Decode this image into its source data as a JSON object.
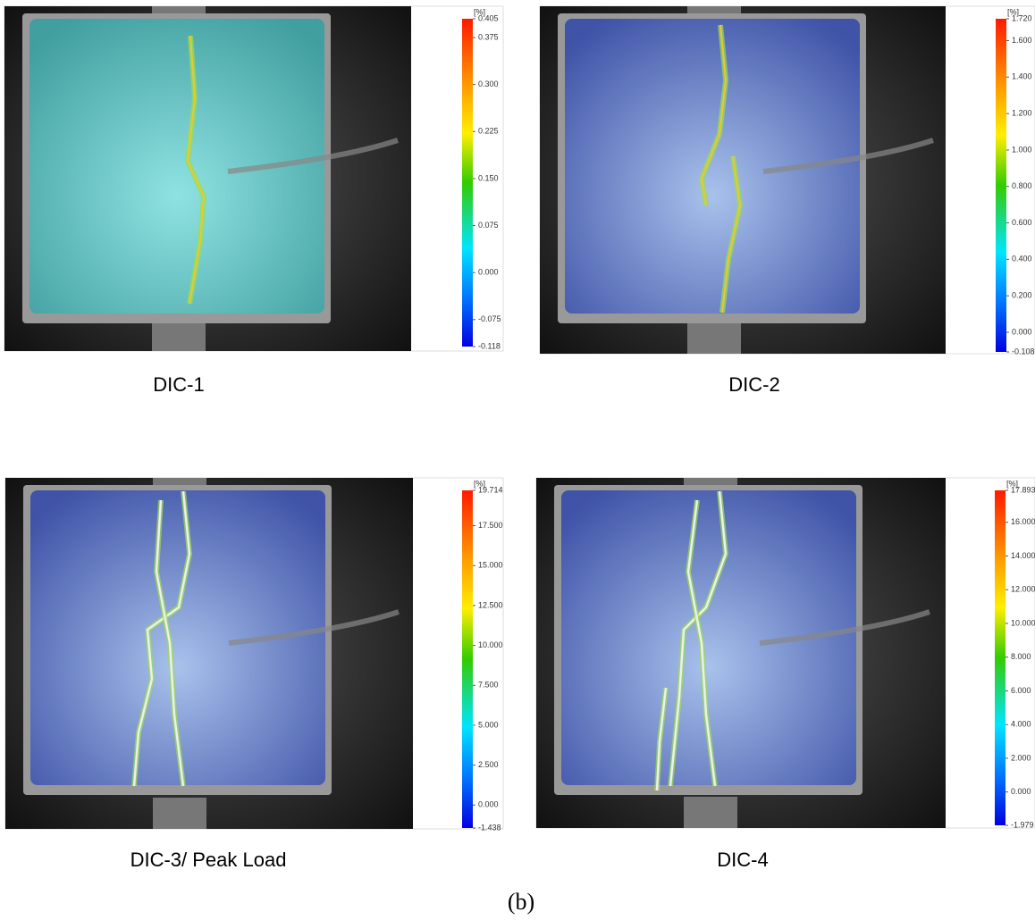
{
  "panels": [
    {
      "caption": "DIC-1",
      "unit": "[%]",
      "ticks": [
        "0.405",
        "0.375",
        "0.300",
        "0.225",
        "0.150",
        "0.075",
        "0.000",
        "-0.075",
        "-0.118"
      ]
    },
    {
      "caption": "DIC-2",
      "unit": "[%]",
      "ticks": [
        "1.720",
        "1.600",
        "1.400",
        "1.200",
        "1.000",
        "0.800",
        "0.600",
        "0.400",
        "0.200",
        "0.000",
        "-0.108"
      ]
    },
    {
      "caption": "DIC-3/ Peak Load",
      "unit": "[%]",
      "ticks": [
        "19.714",
        "17.500",
        "15.000",
        "12.500",
        "10.000",
        "7.500",
        "5.000",
        "2.500",
        "0.000",
        "-1.438"
      ]
    },
    {
      "caption": "DIC-4",
      "unit": "[%]",
      "ticks": [
        "17.893",
        "16.000",
        "14.000",
        "12.000",
        "10.000",
        "8.000",
        "6.000",
        "4.000",
        "2.000",
        "0.000",
        "-1.979"
      ]
    }
  ],
  "figure_label": "(b)"
}
